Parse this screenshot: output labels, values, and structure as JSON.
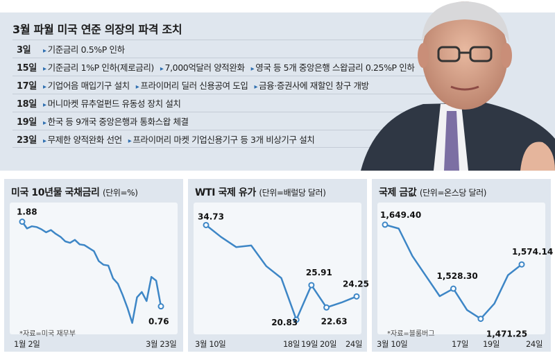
{
  "header": {
    "title": "3월 파월 미국 연준 의장의 파격 조치",
    "rows": [
      {
        "day": "3일",
        "items": [
          "기준금리 0.5%P 인하"
        ]
      },
      {
        "day": "15일",
        "items": [
          "기준금리 1%P 인하(제로금리)",
          "7,000억달러 양적완화",
          "영국 등 5개 중앙은행 스왑금리 0.25%P 인하"
        ]
      },
      {
        "day": "17일",
        "items": [
          "기업어음 매입기구 설치",
          "프라이머리 딜러 신용공여 도입",
          "금융·증권사에 재할인 창구 개방"
        ]
      },
      {
        "day": "18일",
        "items": [
          "머니마켓 뮤추얼펀드 유동성 장치 설치"
        ]
      },
      {
        "day": "19일",
        "items": [
          "한국 등 9개국 중앙은행과 통화스왑 체결"
        ]
      },
      {
        "day": "23일",
        "items": [
          "무제한 양적완화 선언",
          "프라이머리 마켓 기업신용기구 등 3개 비상기구 설치"
        ]
      }
    ]
  },
  "colors": {
    "line": "#3d86c6",
    "background": "#dfe6ee"
  },
  "chart_data": [
    {
      "type": "line",
      "title": "미국 10년물 국채금리",
      "unit": "(단위=%)",
      "source": "*자료=미국 재무부",
      "xticks": [
        "1월 2일",
        "3월 23일"
      ],
      "x": [
        "1월 2일",
        "",
        "",
        "",
        "",
        "",
        "",
        "",
        "",
        "",
        "",
        "",
        "",
        "",
        "",
        "",
        "",
        "",
        "",
        "",
        "",
        "",
        "",
        "",
        "",
        "",
        "",
        "",
        "",
        "3월 23일"
      ],
      "values": [
        1.88,
        1.79,
        1.82,
        1.81,
        1.78,
        1.74,
        1.77,
        1.72,
        1.68,
        1.62,
        1.6,
        1.64,
        1.58,
        1.57,
        1.53,
        1.49,
        1.36,
        1.31,
        1.3,
        1.13,
        1.06,
        0.91,
        0.74,
        0.54,
        0.88,
        0.95,
        0.83,
        1.15,
        1.1,
        0.76
      ],
      "labels": [
        {
          "index": 0,
          "text": "1.88"
        },
        {
          "index": 29,
          "text": "0.76"
        }
      ]
    },
    {
      "type": "line",
      "title": "WTI 국제 유가",
      "unit": "(단위=배럴당 달러)",
      "xticks": [
        "3월 10일",
        "18일",
        "19일",
        "20일",
        "24일"
      ],
      "x": [
        "3월 10일",
        "11일",
        "12일",
        "13일",
        "16일",
        "17일",
        "18일",
        "19일",
        "20일",
        "23일",
        "24일"
      ],
      "values": [
        34.73,
        32.98,
        31.5,
        31.73,
        28.7,
        26.95,
        20.83,
        25.91,
        22.63,
        23.36,
        24.25
      ],
      "labels": [
        {
          "index": 0,
          "text": "34.73"
        },
        {
          "index": 6,
          "text": "20.83"
        },
        {
          "index": 7,
          "text": "25.91"
        },
        {
          "index": 8,
          "text": "22.63"
        },
        {
          "index": 10,
          "text": "24.25"
        }
      ]
    },
    {
      "type": "line",
      "title": "국제 금값",
      "unit": "(단위=온스당 달러)",
      "source": "*자료=블룸버그",
      "xticks": [
        "3월 10일",
        "17일",
        "19일",
        "24일"
      ],
      "x": [
        "3월 10일",
        "11일",
        "12일",
        "13일",
        "16일",
        "17일",
        "18일",
        "19일",
        "20일",
        "23일",
        "24일"
      ],
      "values": [
        1649.4,
        1642,
        1590,
        1552,
        1514,
        1528.3,
        1488,
        1471.25,
        1500,
        1554,
        1574.14
      ],
      "labels": [
        {
          "index": 0,
          "text": "1,649.40"
        },
        {
          "index": 5,
          "text": "1,528.30"
        },
        {
          "index": 7,
          "text": "1,471.25"
        },
        {
          "index": 10,
          "text": "1,574.14"
        }
      ]
    }
  ]
}
